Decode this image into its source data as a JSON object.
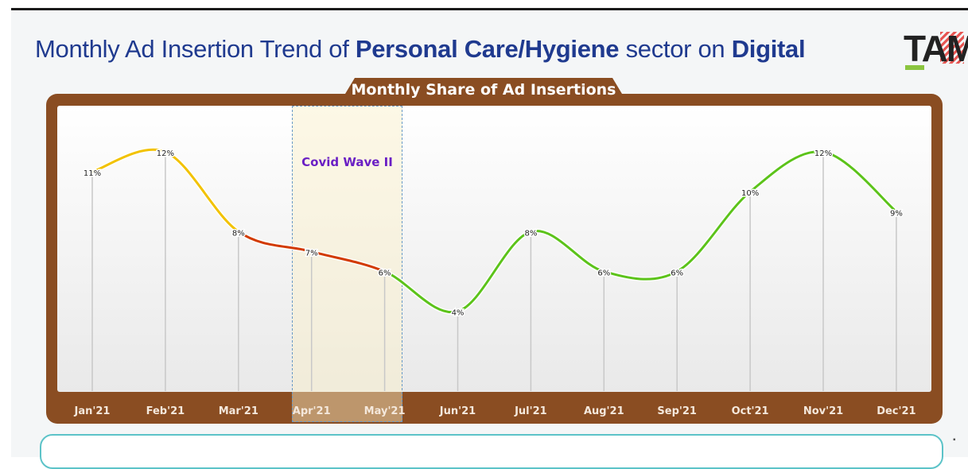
{
  "page": {
    "title_plain_1": "Monthly Ad Insertion Trend of ",
    "title_bold_1": "Personal Care/Hygiene",
    "title_plain_2": " sector on ",
    "title_bold_2": "Digital",
    "logo_text": "TAM"
  },
  "colors": {
    "frame": "#8a4d22",
    "yellow": "#f2c200",
    "red": "#d23a00",
    "green": "#5cc31a",
    "title": "#1f3a8f",
    "covid": "#6a1fc4"
  },
  "chart_data": {
    "type": "line",
    "title": "Monthly Share of Ad Insertions",
    "categories": [
      "Jan'21",
      "Feb'21",
      "Mar'21",
      "Apr'21",
      "May'21",
      "Jun'21",
      "Jul'21",
      "Aug'21",
      "Sep'21",
      "Oct'21",
      "Nov'21",
      "Dec'21"
    ],
    "values": [
      11,
      12,
      8,
      7,
      6,
      4,
      8,
      6,
      6,
      10,
      12,
      9
    ],
    "labels": [
      "11%",
      "12%",
      "8%",
      "7%",
      "6%",
      "4%",
      "8%",
      "6%",
      "6%",
      "10%",
      "12%",
      "9%"
    ],
    "ylim": [
      0,
      13
    ],
    "segments": [
      {
        "from": 0,
        "to": 2,
        "color": "yellow"
      },
      {
        "from": 2,
        "to": 4,
        "color": "red"
      },
      {
        "from": 4,
        "to": 11,
        "color": "green"
      }
    ],
    "annotation": {
      "text": "Covid Wave II",
      "from": "Apr'21",
      "to": "May'21"
    }
  }
}
